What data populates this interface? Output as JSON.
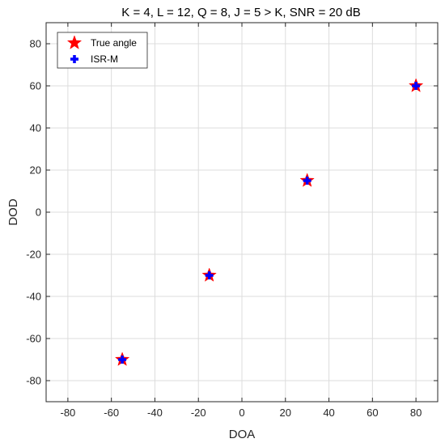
{
  "chart_data": {
    "type": "scatter",
    "title": "K = 4, L = 12, Q = 8, J = 5 > K, SNR = 20 dB",
    "xlabel": "DOA",
    "ylabel": "DOD",
    "xlim": [
      -90,
      90
    ],
    "ylim": [
      -90,
      90
    ],
    "xticks": [
      -80,
      -60,
      -40,
      -20,
      0,
      20,
      40,
      60,
      80
    ],
    "yticks": [
      -80,
      -60,
      -40,
      -20,
      0,
      20,
      40,
      60,
      80
    ],
    "grid": true,
    "legend_position": "top-left",
    "series": [
      {
        "name": "True angle",
        "marker": "star",
        "color": "#ff0000",
        "x": [
          -55,
          -15,
          30,
          80
        ],
        "y": [
          -70,
          -30,
          15,
          60
        ]
      },
      {
        "name": "ISR-M",
        "marker": "plus",
        "color": "#0000ff",
        "x": [
          -55,
          -15,
          30,
          80
        ],
        "y": [
          -70,
          -30,
          15,
          60
        ]
      }
    ]
  }
}
